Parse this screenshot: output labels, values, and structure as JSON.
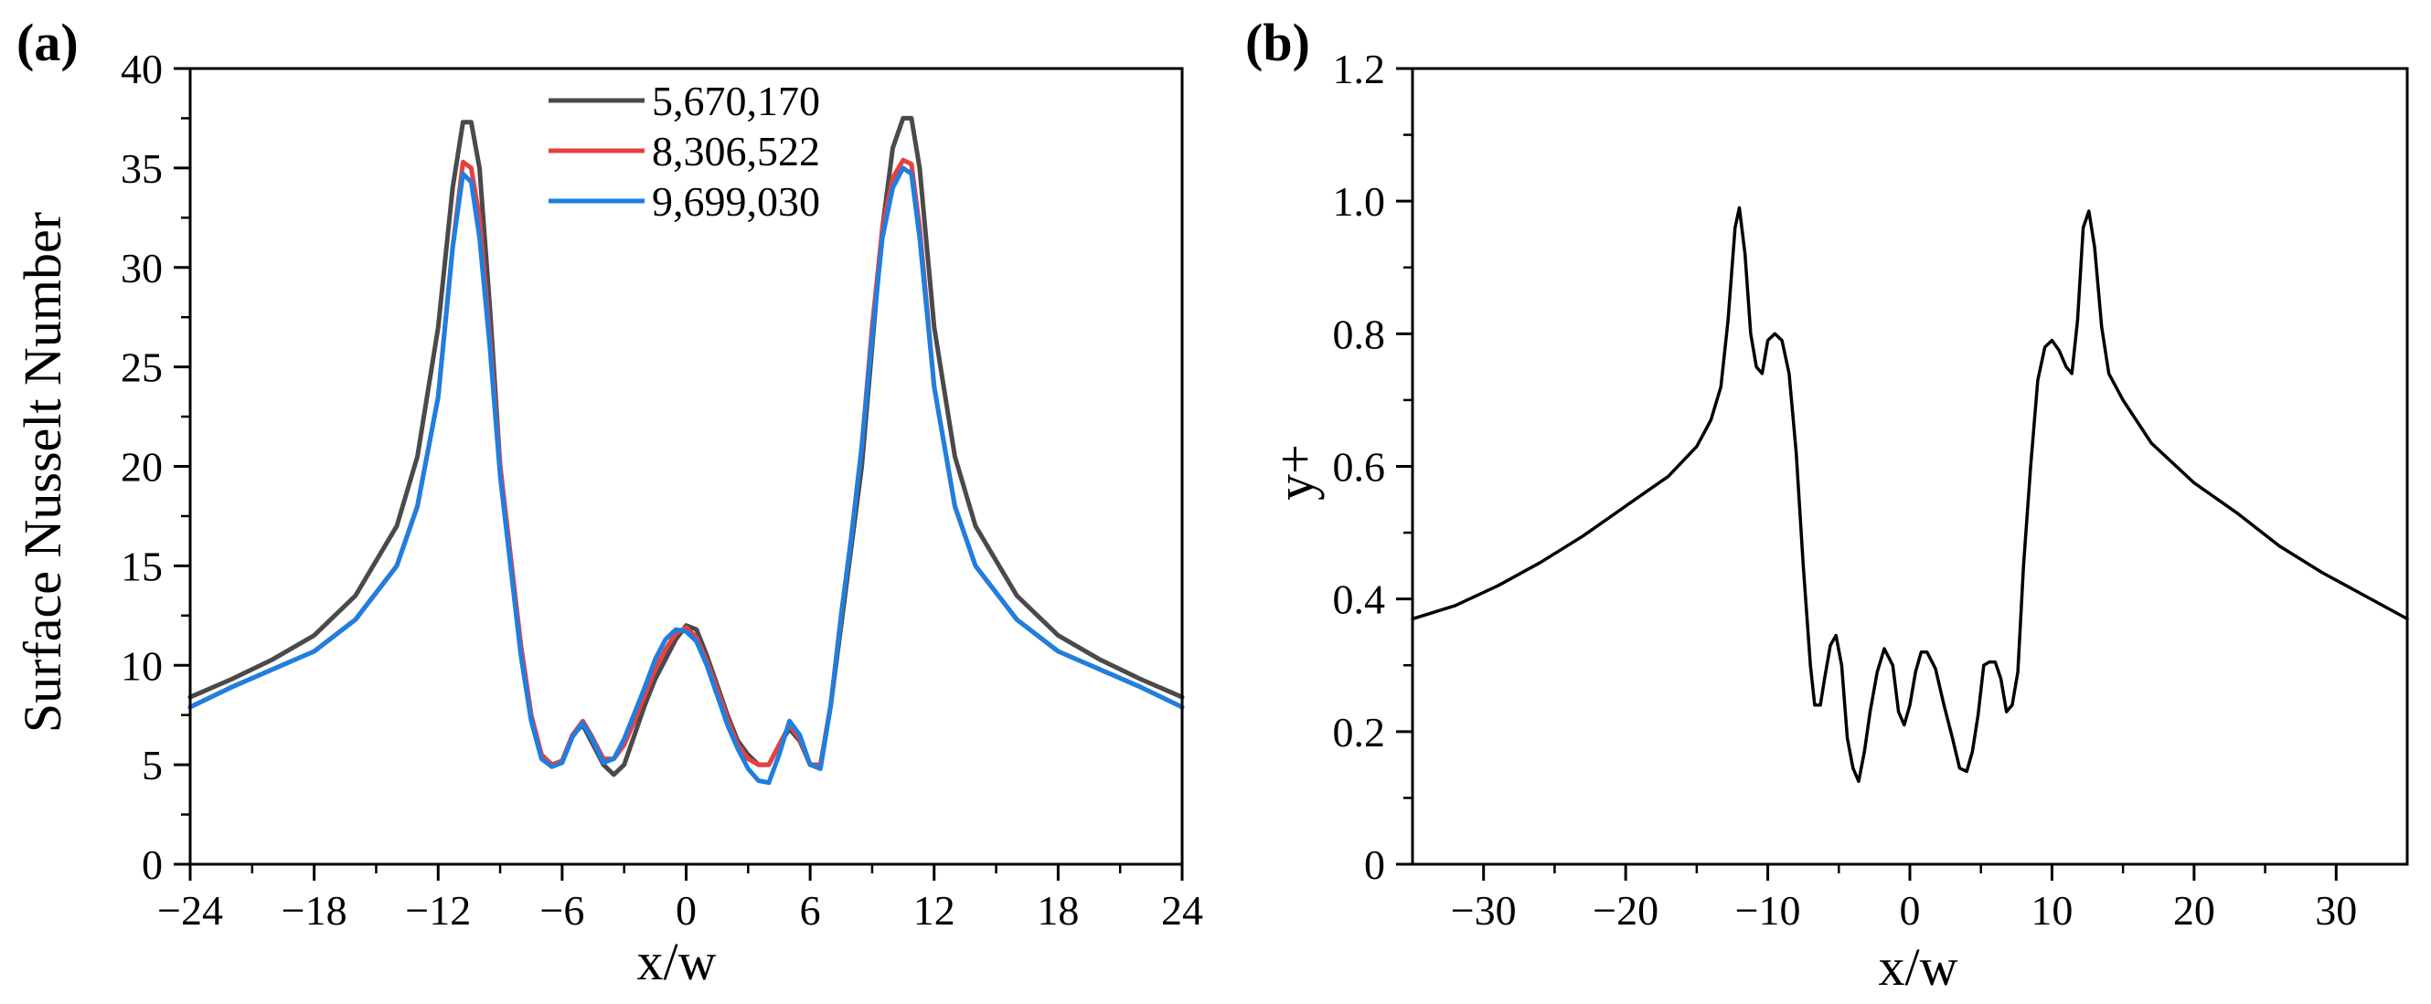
{
  "chart_data": [
    {
      "type": "line",
      "panel_label": "(a)",
      "xlabel": "x/w",
      "ylabel": "Surface Nusselt Number",
      "xlim": [
        -24,
        24
      ],
      "ylim": [
        0,
        40
      ],
      "xticks": [
        -24,
        -18,
        -12,
        -6,
        0,
        6,
        12,
        18,
        24
      ],
      "xtick_labels": [
        "−24",
        "−18",
        "−12",
        "−6",
        "0",
        "6",
        "12",
        "18",
        "24"
      ],
      "yticks": [
        0,
        5,
        10,
        15,
        20,
        25,
        30,
        35,
        40
      ],
      "ytick_labels": [
        "0",
        "5",
        "10",
        "15",
        "20",
        "25",
        "30",
        "35",
        "40"
      ],
      "grid": false,
      "legend_position": "top-center",
      "series": [
        {
          "name": "5,670,170",
          "color": "#4a4a4a",
          "x": [
            -24,
            -22,
            -20,
            -18,
            -16,
            -14,
            -13,
            -12,
            -11.3,
            -10.8,
            -10.4,
            -10,
            -9.5,
            -9,
            -8.5,
            -8,
            -7.5,
            -7,
            -6.5,
            -6,
            -5.5,
            -5,
            -4.6,
            -4,
            -3.5,
            -3,
            -2.5,
            -2,
            -1.5,
            -1,
            -0.5,
            0,
            0.5,
            1,
            1.5,
            2,
            2.5,
            3,
            3.5,
            4,
            4.5,
            5,
            5.5,
            6,
            6.5,
            7,
            7.5,
            8,
            8.5,
            9,
            9.5,
            10,
            10.5,
            10.9,
            11.3,
            12,
            13,
            14,
            16,
            18,
            20,
            22,
            24
          ],
          "y": [
            8.4,
            9.3,
            10.3,
            11.5,
            13.5,
            17,
            20.5,
            27,
            34,
            37.3,
            37.3,
            35,
            28,
            20,
            15.5,
            11,
            7.5,
            5.5,
            5,
            5.2,
            6.5,
            7,
            6.2,
            5,
            4.5,
            5,
            6.5,
            8,
            9.3,
            10.3,
            11.3,
            12,
            11.8,
            10.5,
            9,
            7.5,
            6.2,
            5.5,
            5,
            5,
            6,
            6.8,
            6.2,
            5,
            5,
            8,
            12,
            16,
            20,
            26,
            32,
            36,
            37.5,
            37.5,
            35,
            27,
            20.5,
            17,
            13.5,
            11.5,
            10.3,
            9.3,
            8.4
          ]
        },
        {
          "name": "8,306,522",
          "color": "#e84040",
          "x": [
            -24,
            -22,
            -20,
            -18,
            -16,
            -14,
            -13,
            -12,
            -11.3,
            -10.8,
            -10.4,
            -10,
            -9.5,
            -9,
            -8.5,
            -8,
            -7.5,
            -7,
            -6.5,
            -6,
            -5.5,
            -5,
            -4.6,
            -4,
            -3.5,
            -3,
            -2.5,
            -2,
            -1.5,
            -1,
            -0.5,
            0,
            0.5,
            1,
            1.5,
            2,
            2.5,
            3,
            3.5,
            4,
            4.5,
            5,
            5.5,
            6,
            6.5,
            7,
            7.5,
            8,
            8.5,
            9,
            9.5,
            10,
            10.5,
            10.9,
            11.3,
            12,
            13,
            14,
            16,
            18,
            20,
            22,
            24
          ],
          "y": [
            7.9,
            8.9,
            9.8,
            10.7,
            12.3,
            15,
            18,
            23.5,
            31,
            35.3,
            35,
            32.5,
            26.5,
            20,
            15.5,
            11,
            7.5,
            5.5,
            5,
            5.2,
            6.5,
            7.2,
            6.5,
            5.3,
            5.3,
            6,
            7.2,
            8.5,
            9.8,
            10.8,
            11.6,
            11.9,
            11.4,
            10.2,
            8.8,
            7.3,
            6,
            5.3,
            5,
            5,
            6,
            7,
            6.3,
            5,
            5,
            8,
            12.5,
            16.5,
            21,
            27,
            32,
            34.5,
            35.4,
            35.2,
            32,
            24,
            18,
            15,
            12.3,
            10.7,
            9.8,
            8.9,
            7.9
          ]
        },
        {
          "name": "9,699,030",
          "color": "#1e7fe0",
          "x": [
            -24,
            -22,
            -20,
            -18,
            -16,
            -14,
            -13,
            -12,
            -11.3,
            -10.8,
            -10.4,
            -10,
            -9.5,
            -9,
            -8.5,
            -8,
            -7.5,
            -7,
            -6.5,
            -6,
            -5.5,
            -5,
            -4.6,
            -4,
            -3.5,
            -3,
            -2.5,
            -2,
            -1.5,
            -1,
            -0.5,
            0,
            0.5,
            1,
            1.5,
            2,
            2.5,
            3,
            3.5,
            4,
            4.5,
            5,
            5.5,
            6,
            6.5,
            7,
            7.5,
            8,
            8.5,
            9,
            9.5,
            10,
            10.5,
            10.9,
            11.3,
            12,
            13,
            14,
            16,
            18,
            20,
            22,
            24
          ],
          "y": [
            7.9,
            8.9,
            9.8,
            10.7,
            12.3,
            15,
            18,
            23.5,
            31,
            34.7,
            34.3,
            31.5,
            26,
            19.5,
            15,
            10.5,
            7.2,
            5.3,
            4.9,
            5.1,
            6.4,
            7.1,
            6.4,
            5.1,
            5.3,
            6.3,
            7.6,
            8.9,
            10.3,
            11.3,
            11.8,
            11.7,
            11.2,
            10,
            8.5,
            7,
            5.8,
            4.8,
            4.2,
            4.1,
            5.5,
            7.2,
            6.5,
            5,
            4.8,
            8,
            12.5,
            16.5,
            21,
            26.5,
            31.5,
            34,
            35,
            34.7,
            31.5,
            24,
            18,
            15,
            12.3,
            10.7,
            9.8,
            8.9,
            7.9
          ]
        }
      ]
    },
    {
      "type": "line",
      "panel_label": "(b)",
      "xlabel": "x/w",
      "ylabel": "y+",
      "xlim": [
        -35,
        35
      ],
      "ylim": [
        0,
        1.2
      ],
      "xticks": [
        -30,
        -20,
        -10,
        0,
        10,
        20,
        30
      ],
      "xtick_labels": [
        "−30",
        "−20",
        "−10",
        "0",
        "10",
        "20",
        "30"
      ],
      "yticks": [
        0,
        0.2,
        0.4,
        0.6,
        0.8,
        1.0,
        1.2
      ],
      "ytick_labels": [
        "0",
        "0.2",
        "0.4",
        "0.6",
        "0.8",
        "1.0",
        "1.2"
      ],
      "grid": false,
      "series": [
        {
          "name": "y+",
          "color": "#000000",
          "x": [
            -35,
            -32,
            -29,
            -26,
            -23,
            -20,
            -17,
            -15,
            -14,
            -13.3,
            -12.8,
            -12.3,
            -12,
            -11.6,
            -11.2,
            -10.8,
            -10.4,
            -10,
            -9.5,
            -9,
            -8.5,
            -8,
            -7.5,
            -7,
            -6.7,
            -6.3,
            -6,
            -5.6,
            -5.2,
            -4.8,
            -4.4,
            -4,
            -3.6,
            -3.2,
            -2.8,
            -2.3,
            -1.8,
            -1.2,
            -0.8,
            -0.4,
            0,
            0.4,
            0.8,
            1.2,
            1.8,
            2.4,
            3,
            3.5,
            4,
            4.4,
            4.8,
            5.2,
            5.6,
            6,
            6.4,
            6.8,
            7.2,
            7.6,
            8,
            8.5,
            9,
            9.5,
            10,
            10.5,
            11,
            11.4,
            11.8,
            12.2,
            12.6,
            13,
            13.5,
            14,
            15,
            17,
            20,
            23,
            26,
            29,
            32,
            35
          ],
          "y": [
            0.37,
            0.39,
            0.42,
            0.455,
            0.495,
            0.54,
            0.585,
            0.63,
            0.67,
            0.72,
            0.82,
            0.96,
            0.99,
            0.92,
            0.8,
            0.75,
            0.74,
            0.79,
            0.8,
            0.79,
            0.74,
            0.62,
            0.45,
            0.3,
            0.24,
            0.24,
            0.28,
            0.33,
            0.345,
            0.3,
            0.19,
            0.145,
            0.125,
            0.17,
            0.23,
            0.29,
            0.325,
            0.3,
            0.23,
            0.21,
            0.24,
            0.29,
            0.32,
            0.32,
            0.295,
            0.24,
            0.19,
            0.145,
            0.14,
            0.17,
            0.225,
            0.3,
            0.305,
            0.305,
            0.28,
            0.23,
            0.24,
            0.29,
            0.45,
            0.6,
            0.73,
            0.78,
            0.79,
            0.775,
            0.75,
            0.74,
            0.82,
            0.96,
            0.985,
            0.93,
            0.81,
            0.74,
            0.7,
            0.635,
            0.575,
            0.53,
            0.48,
            0.44,
            0.405,
            0.37
          ]
        }
      ]
    }
  ]
}
